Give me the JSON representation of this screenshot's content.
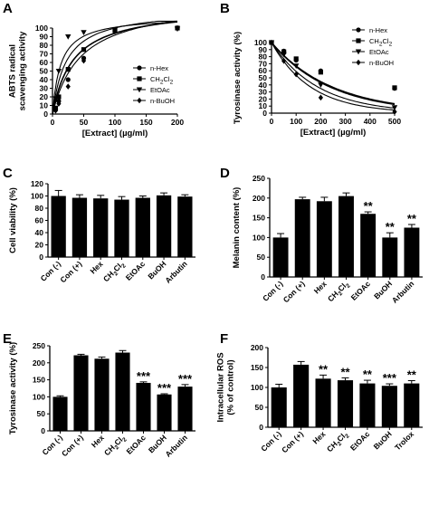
{
  "chart_data": [
    {
      "panel": "A",
      "type": "scatter",
      "xlabel": "[Extract] (µg/ml)",
      "ylabel_lines": [
        "ABTS radical",
        "scavenging activity"
      ],
      "xlim": [
        0,
        200
      ],
      "ylim": [
        0,
        100
      ],
      "xticks": [
        0,
        50,
        100,
        150,
        200
      ],
      "yticks": [
        0,
        10,
        20,
        30,
        40,
        50,
        60,
        70,
        80,
        90,
        100
      ],
      "legend_position": "center-right",
      "series": [
        {
          "name": "n-Hex",
          "marker": "circle",
          "x": [
            5,
            10,
            25,
            50,
            100,
            200
          ],
          "y": [
            5,
            15,
            40,
            65,
            97,
            100
          ],
          "fit": {
            "ymax": 125,
            "k": 33
          }
        },
        {
          "name": "CH2Cl2",
          "name_parts": [
            "CH",
            "2",
            "Cl",
            "2"
          ],
          "marker": "square",
          "x": [
            5,
            10,
            25,
            50,
            100,
            200
          ],
          "y": [
            7,
            20,
            52,
            75,
            97,
            100
          ],
          "fit": {
            "ymax": 122,
            "k": 22
          }
        },
        {
          "name": "EtOAc",
          "marker": "triangle-down",
          "x": [
            5,
            10,
            25,
            50,
            100,
            200
          ],
          "y": [
            18,
            50,
            90,
            95,
            98,
            99
          ],
          "fit": {
            "ymax": 114,
            "k": 13
          }
        },
        {
          "name": "n-BuOH",
          "marker": "diamond",
          "x": [
            5,
            10,
            25,
            50,
            100,
            200
          ],
          "y": [
            4,
            12,
            32,
            62,
            96,
            100
          ],
          "fit": {
            "ymax": 133,
            "k": 45
          }
        }
      ]
    },
    {
      "panel": "B",
      "type": "scatter",
      "xlabel": "[Extract] (µg/ml)",
      "ylabel_lines": [
        "Tyrosinase activity (%)"
      ],
      "xlim": [
        0,
        500
      ],
      "ylim": [
        0,
        100
      ],
      "xticks": [
        0,
        100,
        200,
        300,
        400,
        500
      ],
      "yticks": [
        0,
        10,
        20,
        30,
        40,
        50,
        60,
        70,
        80,
        90,
        100
      ],
      "legend_position": "top-right",
      "series": [
        {
          "name": "n-Hex",
          "marker": "circle",
          "x": [
            0,
            50,
            100,
            200,
            500
          ],
          "y": [
            100,
            88,
            75,
            60,
            35
          ],
          "fit": {
            "a": 100,
            "b": 240
          }
        },
        {
          "name": "CH2Cl2",
          "name_parts": [
            "CH",
            "2",
            "Cl",
            "2"
          ],
          "marker": "square",
          "x": [
            0,
            50,
            100,
            200,
            500
          ],
          "y": [
            100,
            87,
            77,
            58,
            36
          ],
          "fit": {
            "a": 100,
            "b": 250
          }
        },
        {
          "name": "EtOAc",
          "marker": "triangle-down",
          "x": [
            0,
            50,
            100,
            200,
            500
          ],
          "y": [
            100,
            83,
            67,
            40,
            8
          ],
          "fit": {
            "a": 100,
            "b": 190
          }
        },
        {
          "name": "n-BuOH",
          "marker": "diamond",
          "x": [
            0,
            50,
            100,
            200,
            500
          ],
          "y": [
            100,
            74,
            55,
            22,
            2
          ],
          "fit": {
            "a": 100,
            "b": 160
          }
        }
      ]
    },
    {
      "panel": "C",
      "type": "bar",
      "ylabel_lines": [
        "Cell viability (%)"
      ],
      "ylim": [
        0,
        120
      ],
      "yticks": [
        0,
        20,
        40,
        60,
        80,
        100,
        120
      ],
      "categories": [
        "Con (-)",
        "Con (+)",
        "Hex",
        "CH2Cl2",
        "EtOAc",
        "BuOH",
        "Arbutin"
      ],
      "category_parts": [
        [
          "Con (-)"
        ],
        [
          "Con (+)"
        ],
        [
          "Hex"
        ],
        [
          "CH",
          "2",
          "Cl",
          "2"
        ],
        [
          "EtOAc"
        ],
        [
          "BuOH"
        ],
        [
          "Arbutin"
        ]
      ],
      "values": [
        100,
        97,
        96,
        94,
        97,
        101,
        99
      ],
      "errors": [
        9,
        5,
        5,
        5,
        3,
        4,
        3
      ],
      "significance": [
        "",
        "",
        "",
        "",
        "",
        "",
        ""
      ]
    },
    {
      "panel": "D",
      "type": "bar",
      "ylabel_lines": [
        "Melanin content (%)"
      ],
      "ylim": [
        0,
        250
      ],
      "yticks": [
        0,
        50,
        100,
        150,
        200,
        250
      ],
      "categories": [
        "Con (-)",
        "Con (+)",
        "Hex",
        "CH2Cl2",
        "EtOAc",
        "BuOH",
        "Arbutin"
      ],
      "category_parts": [
        [
          "Con (-)"
        ],
        [
          "Con (+)"
        ],
        [
          "Hex"
        ],
        [
          "CH",
          "2",
          "Cl",
          "2"
        ],
        [
          "EtOAc"
        ],
        [
          "BuOH"
        ],
        [
          "Arbutin"
        ]
      ],
      "values": [
        100,
        197,
        192,
        205,
        160,
        100,
        125
      ],
      "errors": [
        10,
        5,
        10,
        8,
        5,
        12,
        8
      ],
      "significance": [
        "",
        "",
        "",
        "",
        "**",
        "**",
        "**"
      ]
    },
    {
      "panel": "E",
      "type": "bar",
      "ylabel_lines": [
        "Tyrosinase activity (%)"
      ],
      "ylim": [
        0,
        250
      ],
      "yticks": [
        0,
        50,
        100,
        150,
        200,
        250
      ],
      "categories": [
        "Con (-)",
        "Con (+)",
        "Hex",
        "CH2Cl2",
        "EtOAc",
        "BuOH",
        "Arbutin"
      ],
      "category_parts": [
        [
          "Con (-)"
        ],
        [
          "Con (+)"
        ],
        [
          "Hex"
        ],
        [
          "CH",
          "2",
          "Cl",
          "2"
        ],
        [
          "EtOAc"
        ],
        [
          "BuOH"
        ],
        [
          "Arbutin"
        ]
      ],
      "values": [
        100,
        222,
        212,
        230,
        141,
        107,
        130
      ],
      "errors": [
        3,
        3,
        5,
        6,
        3,
        2,
        6
      ],
      "significance": [
        "",
        "",
        "",
        "",
        "***",
        "***",
        "***"
      ]
    },
    {
      "panel": "F",
      "type": "bar",
      "ylabel_lines": [
        "Intracellular ROS",
        "(% of control)"
      ],
      "ylim": [
        0,
        200
      ],
      "yticks": [
        0,
        50,
        100,
        150,
        200
      ],
      "categories": [
        "Con (-)",
        "Con (+)",
        "Hex",
        "CH2Cl2",
        "EtOAc",
        "BuOH",
        "Trolox"
      ],
      "category_parts": [
        [
          "Con (-)"
        ],
        [
          "Con (+)"
        ],
        [
          "Hex"
        ],
        [
          "CH",
          "2",
          "Cl",
          "2"
        ],
        [
          "EtOAc"
        ],
        [
          "BuOH"
        ],
        [
          "Trolox"
        ]
      ],
      "values": [
        100,
        157,
        122,
        118,
        110,
        104,
        110
      ],
      "errors": [
        8,
        8,
        9,
        6,
        8,
        5,
        7
      ],
      "significance": [
        "",
        "",
        "**",
        "**",
        "**",
        "***",
        "**"
      ]
    }
  ]
}
